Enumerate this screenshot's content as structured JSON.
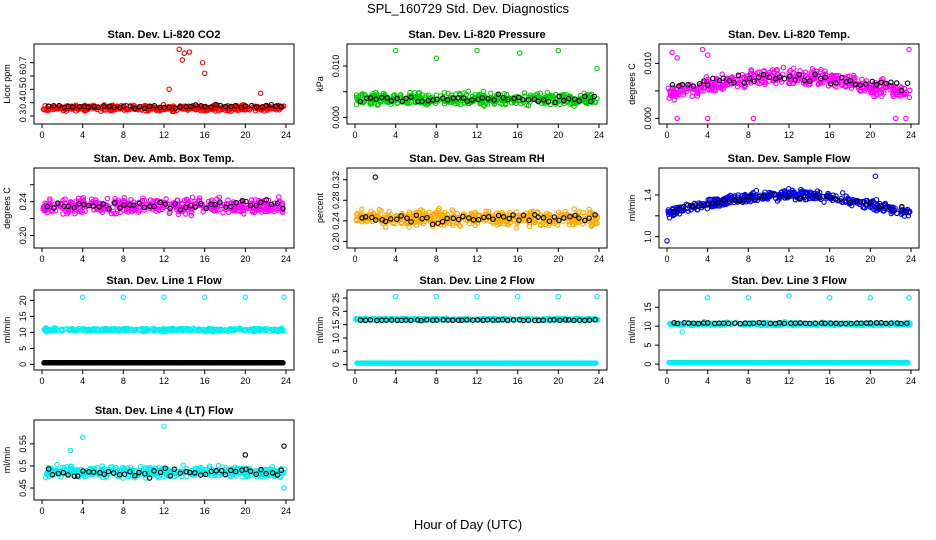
{
  "figure": {
    "title": "SPL_160729  Std. Dev. Diagnostics",
    "xlabel": "Hour of Day (UTC)"
  },
  "chart_data": [
    {
      "type": "scatter",
      "title": "Stan. Dev. Li-820 CO2",
      "xlabel": "",
      "ylabel": "Licor ppm",
      "x_ticks": [
        0,
        4,
        8,
        12,
        16,
        20,
        24
      ],
      "y_ticks": [
        0.3,
        0.4,
        0.5,
        0.6,
        0.7
      ],
      "xlim": [
        0,
        24
      ],
      "ylim": [
        0.27,
        0.81
      ],
      "grid": false,
      "series": [
        {
          "color": "#ff0000",
          "base": 0.36,
          "trend": 0.0,
          "spread": 0.03,
          "outliers": [
            [
              13.5,
              0.8
            ],
            [
              14.0,
              0.77
            ],
            [
              13.8,
              0.72
            ],
            [
              14.5,
              0.78
            ],
            [
              15.8,
              0.7
            ],
            [
              16.0,
              0.62
            ],
            [
              12.5,
              0.5
            ],
            [
              21.5,
              0.47
            ]
          ]
        },
        {
          "color": "#000000",
          "sparse": true,
          "base": 0.37,
          "spread": 0.02
        }
      ]
    },
    {
      "type": "scatter",
      "title": "Stan. Dev. Li-820 Pressure",
      "xlabel": "",
      "ylabel": "kPa",
      "x_ticks": [
        0,
        4,
        8,
        12,
        16,
        20,
        24
      ],
      "y_ticks": [
        0.0,
        0.005,
        0.01
      ],
      "y_tick_labels": [
        "0.000",
        "",
        "0.010"
      ],
      "xlim": [
        0,
        24
      ],
      "ylim": [
        -0.0005,
        0.0135
      ],
      "grid": false,
      "series": [
        {
          "color": "#00cc00",
          "base": 0.0035,
          "trend": 0.0,
          "spread": 0.0018,
          "outliers": [
            [
              4.0,
              0.013
            ],
            [
              8.0,
              0.0115
            ],
            [
              12.0,
              0.013
            ],
            [
              16.2,
              0.0125
            ],
            [
              20.0,
              0.013
            ],
            [
              23.8,
              0.0095
            ]
          ]
        },
        {
          "color": "#000000",
          "sparse": true,
          "base": 0.0035,
          "spread": 0.0012
        }
      ]
    },
    {
      "type": "scatter",
      "title": "Stan. Dev. Li-820 Temp.",
      "xlabel": "",
      "ylabel": "degrees C",
      "x_ticks": [
        0,
        4,
        8,
        12,
        16,
        20,
        24
      ],
      "y_ticks": [
        0.0,
        0.005,
        0.01
      ],
      "y_tick_labels": [
        "0.000",
        "",
        "0.010"
      ],
      "xlim": [
        0,
        24
      ],
      "ylim": [
        -0.0003,
        0.0128
      ],
      "grid": false,
      "series": [
        {
          "color": "#ff00ff",
          "base": 0.0045,
          "trend": 0.003,
          "spread": 0.0022,
          "outliers": [
            [
              0.5,
              0.012
            ],
            [
              1.0,
              0.011
            ],
            [
              3.5,
              0.0125
            ],
            [
              4.0,
              0.0115
            ],
            [
              23.8,
              0.0125
            ],
            [
              1.0,
              0.0
            ],
            [
              4.0,
              0.0
            ],
            [
              8.5,
              0.0
            ],
            [
              22.5,
              0.0
            ],
            [
              23.5,
              0.0
            ]
          ]
        },
        {
          "color": "#000000",
          "sparse": true,
          "base": 0.0055,
          "trend": 0.002,
          "spread": 0.0015
        }
      ]
    },
    {
      "type": "scatter",
      "title": "Stan. Dev. Amb. Box Temp.",
      "xlabel": "",
      "ylabel": "degrees C",
      "x_ticks": [
        0,
        4,
        8,
        12,
        16,
        20,
        24
      ],
      "y_ticks": [
        0.2,
        0.22,
        0.24,
        0.26
      ],
      "y_tick_labels": [
        "0.20",
        "",
        "0.24",
        ""
      ],
      "xlim": [
        0,
        24
      ],
      "ylim": [
        0.19,
        0.275
      ],
      "grid": false,
      "series": [
        {
          "color": "#ff00ff",
          "base": 0.235,
          "trend": 0.0,
          "spread": 0.013
        },
        {
          "color": "#000000",
          "sparse": true,
          "base": 0.235,
          "spread": 0.01
        }
      ]
    },
    {
      "type": "scatter",
      "title": "Stan. Dev. Gas Stream RH",
      "xlabel": "",
      "ylabel": "percent",
      "x_ticks": [
        0,
        4,
        8,
        12,
        16,
        20,
        24
      ],
      "y_ticks": [
        0.2,
        0.24,
        0.28,
        0.32
      ],
      "y_tick_labels": [
        "0.20",
        "0.24",
        "0.28",
        "0.32"
      ],
      "xlim": [
        0,
        24
      ],
      "ylim": [
        0.195,
        0.335
      ],
      "grid": false,
      "series": [
        {
          "color": "#ffaa00",
          "base": 0.245,
          "trend": 0.0,
          "spread": 0.022
        },
        {
          "color": "#000000",
          "sparse": true,
          "base": 0.245,
          "spread": 0.015,
          "outliers": [
            [
              2.0,
              0.325
            ]
          ]
        }
      ]
    },
    {
      "type": "scatter",
      "title": "Stan. Dev. Sample Flow",
      "xlabel": "",
      "ylabel": "ml/min",
      "x_ticks": [
        0,
        4,
        8,
        12,
        16,
        20,
        24
      ],
      "y_ticks": [
        1.0,
        1.2,
        1.4
      ],
      "y_tick_labels": [
        "1.0",
        "",
        "1.4"
      ],
      "xlim": [
        0,
        24
      ],
      "ylim": [
        0.93,
        1.62
      ],
      "grid": false,
      "series": [
        {
          "color": "#0000ff",
          "base": 1.22,
          "trend": 0.18,
          "spread": 0.07,
          "outliers": [
            [
              0.0,
              0.96
            ],
            [
              20.5,
              1.58
            ]
          ]
        },
        {
          "color": "#000000",
          "sparse": true,
          "base": 1.24,
          "trend": 0.15,
          "spread": 0.05
        }
      ]
    },
    {
      "type": "scatter",
      "title": "Stan. Dev. Line 1 Flow",
      "xlabel": "",
      "ylabel": "ml/min",
      "x_ticks": [
        0,
        4,
        8,
        12,
        16,
        20,
        24
      ],
      "y_ticks": [
        0,
        5,
        10,
        15,
        20
      ],
      "xlim": [
        0,
        24
      ],
      "ylim": [
        -0.5,
        22
      ],
      "grid": false,
      "series": [
        {
          "color": "#00eeee",
          "base": 10.8,
          "trend": 0.0,
          "spread": 0.7,
          "band": true,
          "outliers": [
            [
              4.0,
              21
            ],
            [
              8.0,
              21
            ],
            [
              12.0,
              21
            ],
            [
              16.0,
              21
            ],
            [
              20.0,
              21
            ],
            [
              23.8,
              21
            ]
          ]
        },
        {
          "color": "#000000",
          "line_level": 0.5
        }
      ]
    },
    {
      "type": "scatter",
      "title": "Stan. Dev. Line 2 Flow",
      "xlabel": "",
      "ylabel": "ml/min",
      "x_ticks": [
        0,
        4,
        8,
        12,
        16,
        20,
        24
      ],
      "y_ticks": [
        0,
        5,
        10,
        15,
        20,
        25
      ],
      "xlim": [
        0,
        24
      ],
      "ylim": [
        -0.5,
        26.5
      ],
      "grid": false,
      "series": [
        {
          "color": "#00eeee",
          "base": 17.0,
          "trend": 0.0,
          "spread": 0.5,
          "band": true,
          "outliers": [
            [
              4.0,
              25.5
            ],
            [
              8.0,
              25.5
            ],
            [
              12.0,
              25.5
            ],
            [
              16.0,
              25.5
            ],
            [
              20.0,
              25.5
            ],
            [
              23.8,
              25.5
            ]
          ]
        },
        {
          "color": "#00eeee",
          "line_level": 0.6
        },
        {
          "color": "#000000",
          "sparse": true,
          "base": 16.7,
          "spread": 0.25
        }
      ]
    },
    {
      "type": "scatter",
      "title": "Stan. Dev. Line 3 Flow",
      "xlabel": "",
      "ylabel": "ml/min",
      "x_ticks": [
        0,
        4,
        8,
        12,
        16,
        20,
        24
      ],
      "y_ticks": [
        0,
        5,
        10,
        15
      ],
      "xlim": [
        0,
        24
      ],
      "ylim": [
        -0.5,
        18.5
      ],
      "grid": false,
      "series": [
        {
          "color": "#00eeee",
          "base": 10.6,
          "trend": 0.0,
          "spread": 0.6,
          "band": true,
          "outliers": [
            [
              4.0,
              17.5
            ],
            [
              8.0,
              17.5
            ],
            [
              12.0,
              18
            ],
            [
              16.0,
              17.5
            ],
            [
              20.0,
              17.5
            ],
            [
              23.8,
              17.5
            ],
            [
              1.5,
              8.5
            ]
          ]
        },
        {
          "color": "#00eeee",
          "line_level": 0.4
        },
        {
          "color": "#000000",
          "sparse": true,
          "base": 10.8,
          "spread": 0.2
        }
      ]
    },
    {
      "type": "scatter",
      "title": "Stan. Dev. Line 4 (LT) Flow",
      "xlabel": "",
      "ylabel": "ml/min",
      "x_ticks": [
        0,
        4,
        8,
        12,
        16,
        20,
        24
      ],
      "y_ticks": [
        0.45,
        0.5,
        0.55
      ],
      "xlim": [
        0,
        24
      ],
      "ylim": [
        0.432,
        0.595
      ],
      "grid": false,
      "series": [
        {
          "color": "#00eeee",
          "base": 0.487,
          "trend": 0.0,
          "spread": 0.018,
          "outliers": [
            [
              12.0,
              0.59
            ],
            [
              4.0,
              0.565
            ],
            [
              2.8,
              0.535
            ],
            [
              23.8,
              0.45
            ]
          ]
        },
        {
          "color": "#000000",
          "sparse": true,
          "base": 0.485,
          "spread": 0.015,
          "outliers": [
            [
              20.0,
              0.525
            ],
            [
              23.8,
              0.545
            ]
          ]
        }
      ]
    }
  ]
}
